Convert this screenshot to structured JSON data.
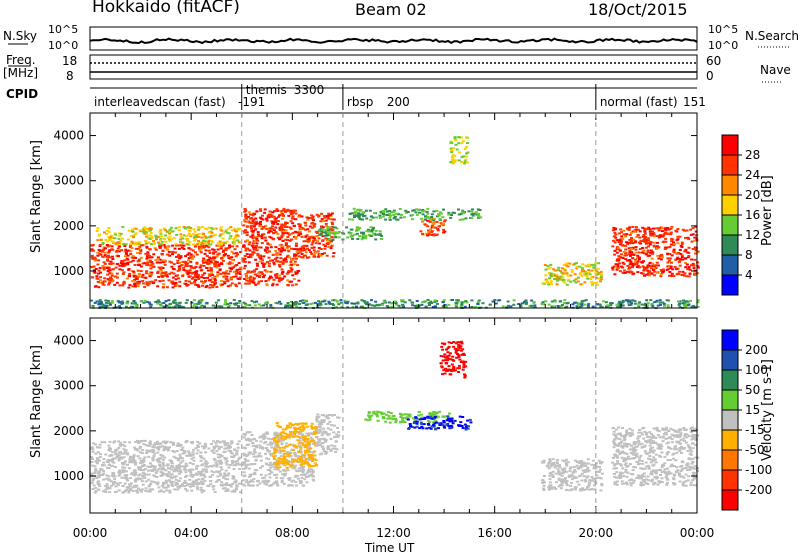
{
  "header": {
    "radar": "Hokkaido (fitACF)",
    "beam": "Beam 02",
    "date": "18/Oct/2015"
  },
  "top_panels": {
    "nsky_label": "N.Sky",
    "nsky_ticks": [
      "10^5",
      "10^0"
    ],
    "nsearch_label": "N.Search",
    "freq_label_1": "Freq.",
    "freq_label_2": "[MHz]",
    "freq_ticks": [
      "18",
      "8"
    ],
    "nave_ticks": [
      "60",
      "0"
    ],
    "nave_label": "Nave",
    "cpid_label": "CPID"
  },
  "cpid_segments": [
    {
      "name": "interleavedscan (fast)",
      "id": "-191",
      "start_hour": 0,
      "end_hour": 6
    },
    {
      "name": "themis",
      "id": "3300",
      "start_hour": 6,
      "end_hour": 10
    },
    {
      "name": "rbsp",
      "id": "200",
      "start_hour": 10,
      "end_hour": 20
    },
    {
      "name": "normal (fast)",
      "id": "151",
      "start_hour": 20,
      "end_hour": 24
    }
  ],
  "colors": {
    "power_scale": [
      "#0000ff",
      "#1f5fa8",
      "#2e8b57",
      "#66cc33",
      "#ffd000",
      "#ff8800",
      "#ff3300",
      "#ff0000"
    ],
    "velocity_scale": [
      "#0000ff",
      "#2050b0",
      "#2e8b57",
      "#66cc33",
      "#c0c0c0",
      "#ffb000",
      "#ff7700",
      "#ff3300",
      "#ff0000"
    ],
    "ground_scatter": "#c0c0c0"
  },
  "chart_data": [
    {
      "type": "heatmap",
      "name": "power",
      "xlabel": "",
      "ylabel": "Slant Range [km]",
      "xlim": [
        0,
        24
      ],
      "ylim": [
        180,
        4500
      ],
      "yticks": [
        1000,
        2000,
        3000,
        4000
      ],
      "colorbar_label": "Power [dB]",
      "colorbar_ticks": [
        "4",
        "8",
        "12",
        "16",
        "20",
        "24",
        "28"
      ],
      "clim": [
        0,
        32
      ],
      "regions": [
        {
          "x": [
            0,
            5.9
          ],
          "y": [
            650,
            1600
          ],
          "v": 27
        },
        {
          "x": [
            0.2,
            5.9
          ],
          "y": [
            1600,
            2000
          ],
          "v": 18
        },
        {
          "x": [
            6,
            8.2
          ],
          "y": [
            700,
            2400
          ],
          "v": 27
        },
        {
          "x": [
            8.2,
            9.6
          ],
          "y": [
            1300,
            2300
          ],
          "v": 26
        },
        {
          "x": [
            9,
            11.5
          ],
          "y": [
            1700,
            2000
          ],
          "v": 12
        },
        {
          "x": [
            10.2,
            15.4
          ],
          "y": [
            2150,
            2400
          ],
          "v": 12
        },
        {
          "x": [
            13,
            14
          ],
          "y": [
            1800,
            2200
          ],
          "v": 25
        },
        {
          "x": [
            14.2,
            14.9
          ],
          "y": [
            3400,
            4000
          ],
          "v": 16
        },
        {
          "x": [
            17.8,
            20.2
          ],
          "y": [
            700,
            1200
          ],
          "v": 18
        },
        {
          "x": [
            20.6,
            24
          ],
          "y": [
            900,
            2000
          ],
          "v": 27
        },
        {
          "x": [
            0,
            24
          ],
          "y": [
            200,
            380
          ],
          "v": 10
        }
      ]
    },
    {
      "type": "heatmap",
      "name": "velocity",
      "xlabel": "Time UT",
      "ylabel": "Slant Range [km]",
      "xlim": [
        0,
        24
      ],
      "ylim": [
        180,
        4500
      ],
      "xticks": [
        "00:00",
        "04:00",
        "08:00",
        "12:00",
        "16:00",
        "20:00",
        "00:00"
      ],
      "yticks": [
        1000,
        2000,
        3000,
        4000
      ],
      "colorbar_label": "Velocity [m s-1]",
      "colorbar_ticks": [
        "200",
        "100",
        "50",
        "15",
        "-15",
        "-50",
        "-100",
        "-200"
      ],
      "clim": [
        -250,
        250
      ],
      "regions": [
        {
          "x": [
            0,
            5.9
          ],
          "y": [
            650,
            1800
          ],
          "v": 0
        },
        {
          "x": [
            6,
            8.8
          ],
          "y": [
            800,
            2000
          ],
          "v": 0
        },
        {
          "x": [
            7.2,
            8.9
          ],
          "y": [
            1200,
            2200
          ],
          "v": -70
        },
        {
          "x": [
            8.9,
            9.8
          ],
          "y": [
            1500,
            2400
          ],
          "v": 0
        },
        {
          "x": [
            10.8,
            14.2
          ],
          "y": [
            2200,
            2450
          ],
          "v": 40
        },
        {
          "x": [
            12.5,
            15
          ],
          "y": [
            2050,
            2350
          ],
          "v": 200
        },
        {
          "x": [
            13.8,
            14.8
          ],
          "y": [
            3200,
            4000
          ],
          "v": -220
        },
        {
          "x": [
            17.8,
            20.2
          ],
          "y": [
            700,
            1400
          ],
          "v": 0
        },
        {
          "x": [
            20.6,
            24
          ],
          "y": [
            800,
            2100
          ],
          "v": 0
        }
      ]
    }
  ]
}
